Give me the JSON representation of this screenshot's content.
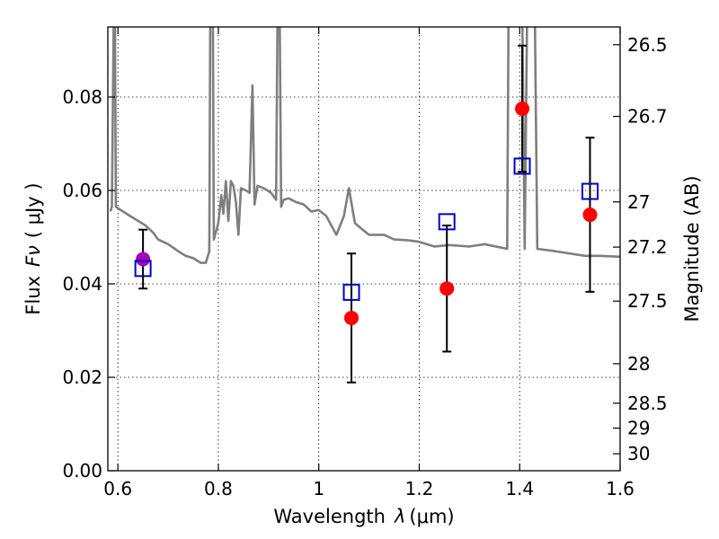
{
  "chart_data": {
    "type": "scatter",
    "xlabel": "Wavelength",
    "xlabel_symbol": "λ",
    "xlabel_unit": "(μm)",
    "ylabel": "Flux",
    "ylabel_symbol": "Fν",
    "ylabel_unit": "( μJy )",
    "y2label": "Magnitude (AB)",
    "xlim": [
      0.58,
      1.6
    ],
    "ylim": [
      0.0,
      0.095
    ],
    "grid": true,
    "x_ticks": [
      {
        "value": 0.6,
        "label": "0.6"
      },
      {
        "value": 0.8,
        "label": "0.8"
      },
      {
        "value": 1.0,
        "label": "1"
      },
      {
        "value": 1.2,
        "label": "1.2"
      },
      {
        "value": 1.4,
        "label": "1.4"
      },
      {
        "value": 1.6,
        "label": "1.6"
      }
    ],
    "y_ticks": [
      {
        "value": 0.0,
        "label": "0.00"
      },
      {
        "value": 0.02,
        "label": "0.02"
      },
      {
        "value": 0.04,
        "label": "0.04"
      },
      {
        "value": 0.06,
        "label": "0.06"
      },
      {
        "value": 0.08,
        "label": "0.08"
      }
    ],
    "mag_ticks": [
      {
        "label": "26.5",
        "mag": 26.5
      },
      {
        "label": "26.7",
        "mag": 26.7
      },
      {
        "label": "27",
        "mag": 27.0
      },
      {
        "label": "27.2",
        "mag": 27.2
      },
      {
        "label": "27.5",
        "mag": 27.5
      },
      {
        "label": "28",
        "mag": 28.0
      },
      {
        "label": "28.5",
        "mag": 28.5
      },
      {
        "label": "29",
        "mag": 29.0
      },
      {
        "label": "30",
        "mag": 30.0
      }
    ],
    "series": [
      {
        "kind": "model_sed",
        "color": "#7f7f7f",
        "points": [
          [
            0.585,
            0.0555
          ],
          [
            0.588,
            0.0565
          ],
          [
            0.592,
            0.1
          ],
          [
            0.594,
            0.1
          ],
          [
            0.596,
            0.0565
          ],
          [
            0.61,
            0.0555
          ],
          [
            0.625,
            0.0545
          ],
          [
            0.64,
            0.0535
          ],
          [
            0.655,
            0.0525
          ],
          [
            0.67,
            0.051
          ],
          [
            0.68,
            0.0495
          ],
          [
            0.7,
            0.0485
          ],
          [
            0.72,
            0.047
          ],
          [
            0.735,
            0.046
          ],
          [
            0.75,
            0.0455
          ],
          [
            0.765,
            0.0445
          ],
          [
            0.775,
            0.0445
          ],
          [
            0.782,
            0.047
          ],
          [
            0.784,
            0.1
          ],
          [
            0.789,
            0.1
          ],
          [
            0.791,
            0.0495
          ],
          [
            0.8,
            0.053
          ],
          [
            0.806,
            0.059
          ],
          [
            0.81,
            0.055
          ],
          [
            0.815,
            0.062
          ],
          [
            0.82,
            0.0535
          ],
          [
            0.825,
            0.062
          ],
          [
            0.83,
            0.061
          ],
          [
            0.835,
            0.0575
          ],
          [
            0.84,
            0.0505
          ],
          [
            0.845,
            0.0605
          ],
          [
            0.855,
            0.06
          ],
          [
            0.862,
            0.0595
          ],
          [
            0.868,
            0.0825
          ],
          [
            0.872,
            0.057
          ],
          [
            0.878,
            0.061
          ],
          [
            0.89,
            0.0605
          ],
          [
            0.905,
            0.0595
          ],
          [
            0.915,
            0.058
          ],
          [
            0.918,
            0.1
          ],
          [
            0.922,
            0.1
          ],
          [
            0.925,
            0.0565
          ],
          [
            0.93,
            0.058
          ],
          [
            0.94,
            0.0583
          ],
          [
            0.955,
            0.0575
          ],
          [
            0.97,
            0.057
          ],
          [
            0.985,
            0.0555
          ],
          [
            1.0,
            0.0558
          ],
          [
            1.015,
            0.0545
          ],
          [
            1.025,
            0.0525
          ],
          [
            1.035,
            0.0505
          ],
          [
            1.05,
            0.0545
          ],
          [
            1.06,
            0.0605
          ],
          [
            1.072,
            0.053
          ],
          [
            1.085,
            0.0518
          ],
          [
            1.1,
            0.0505
          ],
          [
            1.13,
            0.0505
          ],
          [
            1.15,
            0.0495
          ],
          [
            1.18,
            0.0493
          ],
          [
            1.2,
            0.049
          ],
          [
            1.23,
            0.048
          ],
          [
            1.26,
            0.0483
          ],
          [
            1.3,
            0.048
          ],
          [
            1.33,
            0.0485
          ],
          [
            1.375,
            0.0475
          ],
          [
            1.378,
            0.1
          ],
          [
            1.382,
            0.1
          ],
          [
            1.385,
            0.1
          ],
          [
            1.395,
            0.1
          ],
          [
            1.4,
            0.1
          ],
          [
            1.405,
            0.1
          ],
          [
            1.41,
            0.0475
          ],
          [
            1.415,
            0.1
          ],
          [
            1.42,
            0.1
          ],
          [
            1.425,
            0.1
          ],
          [
            1.43,
            0.1
          ],
          [
            1.435,
            0.0475
          ],
          [
            1.47,
            0.047
          ],
          [
            1.5,
            0.0465
          ],
          [
            1.53,
            0.046
          ],
          [
            1.56,
            0.046
          ],
          [
            1.6,
            0.0458
          ]
        ]
      },
      {
        "kind": "observed",
        "color": "#ff0000",
        "points": [
          {
            "x": 1.065,
            "y": 0.0327,
            "err": 0.0138
          },
          {
            "x": 1.255,
            "y": 0.039,
            "err": 0.0135
          },
          {
            "x": 1.405,
            "y": 0.0775,
            "err": 0.0135
          },
          {
            "x": 1.54,
            "y": 0.0548,
            "err": 0.0165
          }
        ]
      },
      {
        "kind": "observed_highlight",
        "color": "#aa00bb",
        "points": [
          {
            "x": 0.65,
            "y": 0.0453,
            "err": 0.0063
          }
        ]
      },
      {
        "kind": "model_photometry",
        "color": "#0000cc",
        "points": [
          {
            "x": 0.65,
            "y": 0.0433
          },
          {
            "x": 1.065,
            "y": 0.0382
          },
          {
            "x": 1.255,
            "y": 0.0533
          },
          {
            "x": 1.405,
            "y": 0.0652
          },
          {
            "x": 1.54,
            "y": 0.0598
          }
        ]
      }
    ]
  }
}
